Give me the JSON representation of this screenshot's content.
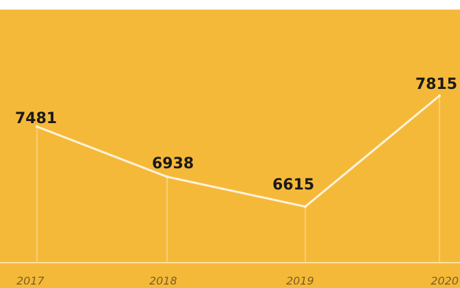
{
  "colors": {
    "background": "#f5b93a",
    "line": "#fdf3dc",
    "drop_line": "#f9dda0",
    "baseline": "#fbe2a4",
    "value_text": "#1a1a1a",
    "year_text": "#7a6020"
  },
  "chart_data": {
    "type": "line",
    "title": "",
    "xlabel": "",
    "ylabel": "",
    "categories": [
      "2017",
      "2018",
      "2019",
      "2020"
    ],
    "series": [
      {
        "values": [
          7481,
          6938,
          6615,
          7815
        ]
      }
    ],
    "data_labels": [
      "7481",
      "6938",
      "6615",
      "7815"
    ],
    "grid": false,
    "legend": "none",
    "axes_visible": false
  }
}
